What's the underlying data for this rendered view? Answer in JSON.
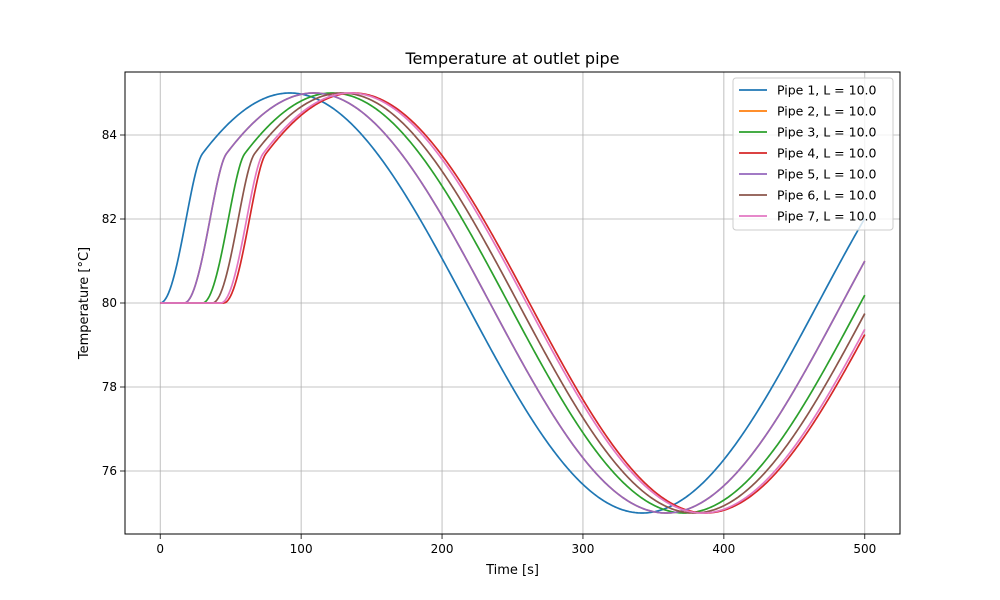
{
  "chart_data": {
    "type": "line",
    "title": "Temperature at outlet pipe",
    "xlabel": "Time [s]",
    "ylabel": "Temperature [°C]",
    "xlim": [
      -25,
      525
    ],
    "ylim": [
      74.5,
      85.5
    ],
    "xticks": [
      0,
      100,
      200,
      300,
      400,
      500
    ],
    "yticks": [
      76,
      78,
      80,
      82,
      84
    ],
    "grid": true,
    "legend_position": "top-right",
    "model": {
      "baseline": 80,
      "amplitude": 5,
      "period": 500,
      "phase_offset": 33,
      "ramp_width": 30,
      "x_start": 0,
      "x_end": 500
    },
    "series": [
      {
        "name": "Pipe 1, L = 10.0",
        "color": "#1f77b4",
        "delay": 0
      },
      {
        "name": "Pipe 2, L = 10.0",
        "color": "#ff7f0e",
        "delay": 17
      },
      {
        "name": "Pipe 3, L = 10.0",
        "color": "#2ca02c",
        "delay": 30
      },
      {
        "name": "Pipe 4, L = 10.0",
        "color": "#d62728",
        "delay": 45
      },
      {
        "name": "Pipe 5, L = 10.0",
        "color": "#9467bd",
        "delay": 17
      },
      {
        "name": "Pipe 6, L = 10.0",
        "color": "#8c564b",
        "delay": 37
      },
      {
        "name": "Pipe 7, L = 10.0",
        "color": "#e377c2",
        "delay": 43
      }
    ]
  }
}
